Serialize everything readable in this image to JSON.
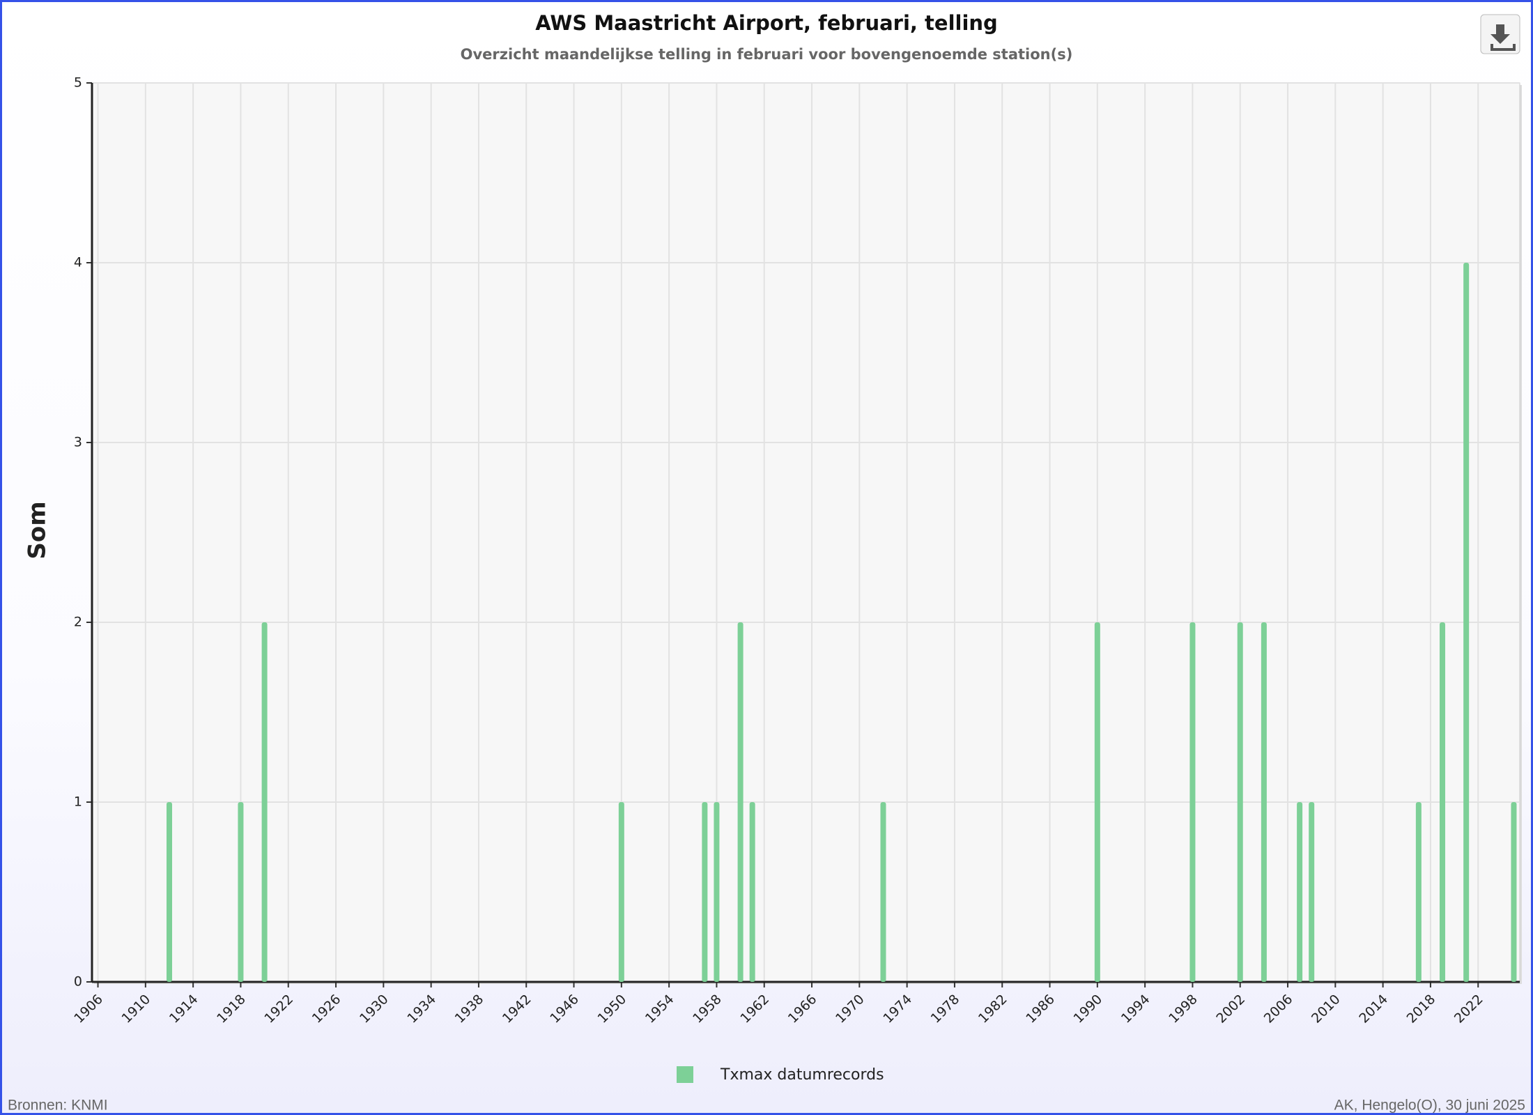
{
  "chart_data": {
    "type": "bar",
    "title": "AWS Maastricht Airport, februari, telling",
    "subtitle": "Overzicht maandelijkse telling in februari voor bovengenoemde station(s)",
    "y_label": "Som",
    "x": [
      1912,
      1918,
      1920,
      1950,
      1957,
      1958,
      1960,
      1961,
      1972,
      1990,
      1998,
      2002,
      2004,
      2007,
      2008,
      2017,
      2019,
      2021,
      2025
    ],
    "series": [
      {
        "name": "Txmax datumrecords",
        "color": "#7dd097",
        "values": [
          1,
          1,
          2,
          1,
          1,
          1,
          2,
          1,
          1,
          2,
          2,
          2,
          2,
          1,
          1,
          1,
          2,
          4,
          1
        ]
      }
    ],
    "xlim": [
      1905.5,
      2025.5
    ],
    "xticks": [
      1906,
      1910,
      1914,
      1918,
      1922,
      1926,
      1930,
      1934,
      1938,
      1942,
      1946,
      1950,
      1954,
      1958,
      1962,
      1966,
      1970,
      1974,
      1978,
      1982,
      1986,
      1990,
      1994,
      1998,
      2002,
      2006,
      2010,
      2014,
      2018,
      2022
    ],
    "ylim": [
      0,
      5
    ],
    "yticks": [
      0,
      1,
      2,
      3,
      4,
      5
    ],
    "grid": true
  },
  "footer": {
    "source": "Bronnen: KNMI",
    "credit": "AK, Hengelo(O), 30 juni 2025"
  }
}
